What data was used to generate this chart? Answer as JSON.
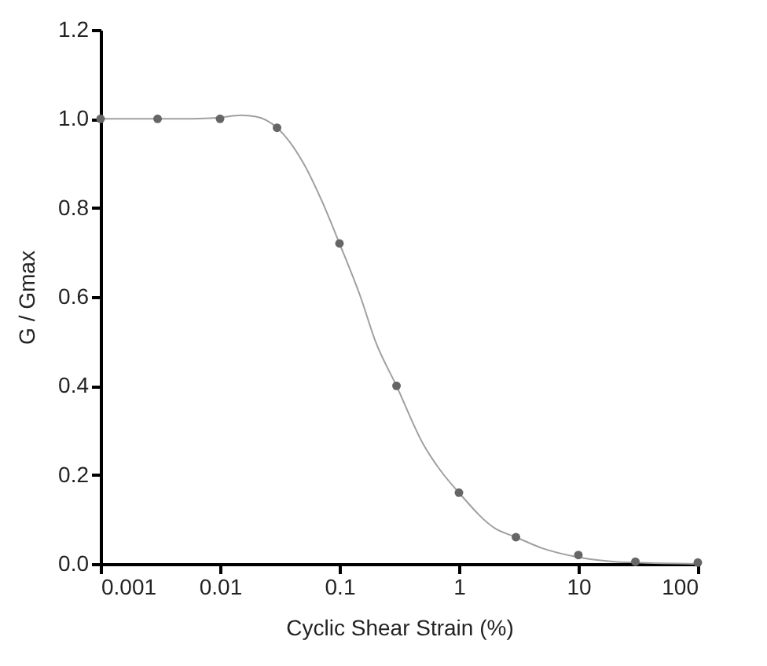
{
  "chart_data": {
    "type": "scatter",
    "xlabel": "Cyclic Shear Strain (%)",
    "ylabel": "G / Gmax",
    "log": "x",
    "xlim": [
      0.001,
      100
    ],
    "xticks": [
      0.001,
      0.01,
      0.1,
      1,
      10,
      100
    ],
    "ylim": [
      0,
      1.2
    ],
    "yticks": [
      {
        "value": 0,
        "label": "0.0"
      },
      {
        "value": 0.2,
        "label": "0.2"
      },
      {
        "value": 0.4,
        "label": "0.4"
      },
      {
        "value": 0.6,
        "label": "0.6"
      },
      {
        "value": 0.8,
        "label": "0.8"
      },
      {
        "value": 1,
        "label": "1.0"
      },
      {
        "value": 1.2,
        "label": "1.2"
      }
    ],
    "grid": false,
    "marker": "circle",
    "series": [
      {
        "type": "line",
        "marker": "none",
        "color": "#a0a0a0",
        "x": [
          0.001,
          0.005,
          0.01,
          0.015,
          0.02,
          0.03,
          0.05,
          0.07,
          0.1,
          0.15,
          0.2,
          0.3,
          0.5,
          0.7,
          1,
          2,
          3,
          5,
          10,
          20,
          30,
          100
        ],
        "values": [
          1.0,
          1.0,
          1.003,
          1.008,
          1.005,
          0.98,
          0.9,
          0.82,
          0.72,
          0.6,
          0.5,
          0.4,
          0.27,
          0.21,
          0.16,
          0.08,
          0.06,
          0.035,
          0.015,
          0.005,
          0.003,
          0.0
        ]
      },
      {
        "color": "#666666",
        "x": [
          0.001,
          0.003,
          0.01,
          0.03,
          0.1,
          0.3,
          1,
          3,
          10,
          30,
          100
        ],
        "values": [
          1.0,
          1.0,
          1.0,
          0.98,
          0.72,
          0.4,
          0.16,
          0.06,
          0.02,
          0.005,
          0.003
        ]
      }
    ]
  }
}
